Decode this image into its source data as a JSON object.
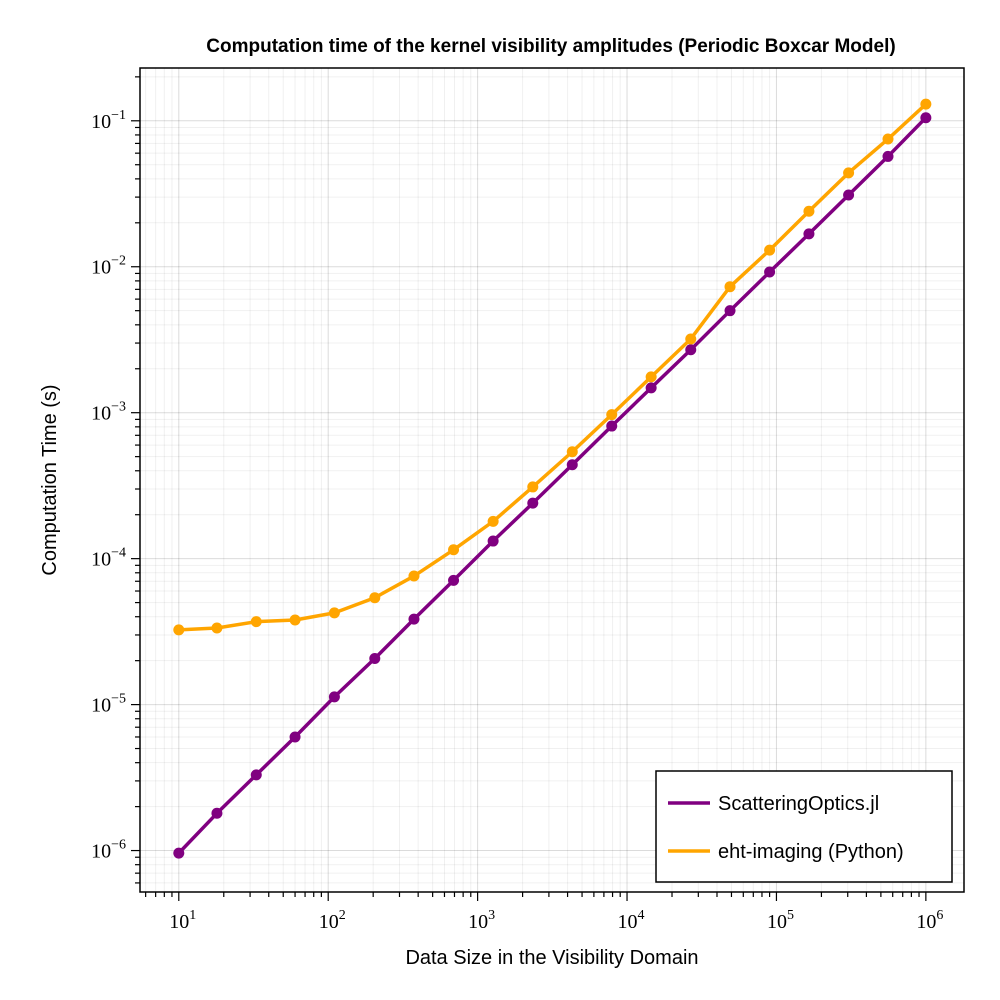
{
  "chart_data": {
    "type": "line",
    "title": "Computation time of the kernel visibility amplitudes (Periodic Boxcar Model)",
    "xlabel": "Data Size in the Visibility Domain",
    "ylabel": "Computation Time (s)",
    "x_scale": "log",
    "y_scale": "log",
    "xlim": [
      5.5,
      1800000
    ],
    "ylim": [
      5.2e-07,
      0.23
    ],
    "x_ticks": [
      10,
      100,
      1000,
      10000,
      100000,
      1000000
    ],
    "x_tick_labels": [
      {
        "base": "10",
        "exp": "1"
      },
      {
        "base": "10",
        "exp": "2"
      },
      {
        "base": "10",
        "exp": "3"
      },
      {
        "base": "10",
        "exp": "4"
      },
      {
        "base": "10",
        "exp": "5"
      },
      {
        "base": "10",
        "exp": "6"
      }
    ],
    "y_ticks": [
      1e-06,
      1e-05,
      0.0001,
      0.001,
      0.01,
      0.1
    ],
    "y_tick_labels": [
      {
        "base": "10",
        "exp": "−6"
      },
      {
        "base": "10",
        "exp": "−5"
      },
      {
        "base": "10",
        "exp": "−4"
      },
      {
        "base": "10",
        "exp": "−3"
      },
      {
        "base": "10",
        "exp": "−2"
      },
      {
        "base": "10",
        "exp": "−1"
      }
    ],
    "grid": true,
    "legend_position": "bottom-right",
    "x": [
      10,
      18,
      33,
      60,
      110,
      205,
      375,
      690,
      1270,
      2340,
      4300,
      7900,
      14500,
      26700,
      48900,
      90000,
      165000,
      304000,
      558000,
      1000000
    ],
    "series": [
      {
        "name": "ScatteringOptics.jl",
        "color": "#800080",
        "values": [
          9.6e-07,
          1.8e-06,
          3.3e-06,
          6e-06,
          1.13e-05,
          2.07e-05,
          3.85e-05,
          7.1e-05,
          0.000132,
          0.00024,
          0.00044,
          0.00081,
          0.00148,
          0.0027,
          0.005,
          0.0092,
          0.0168,
          0.031,
          0.057,
          0.105
        ]
      },
      {
        "name": "eht-imaging (Python)",
        "color": "#FFA500",
        "values": [
          3.25e-05,
          3.35e-05,
          3.7e-05,
          3.8e-05,
          4.25e-05,
          5.4e-05,
          7.6e-05,
          0.000115,
          0.00018,
          0.00031,
          0.00054,
          0.00097,
          0.00176,
          0.0032,
          0.0073,
          0.013,
          0.024,
          0.044,
          0.075,
          0.13
        ]
      }
    ]
  }
}
